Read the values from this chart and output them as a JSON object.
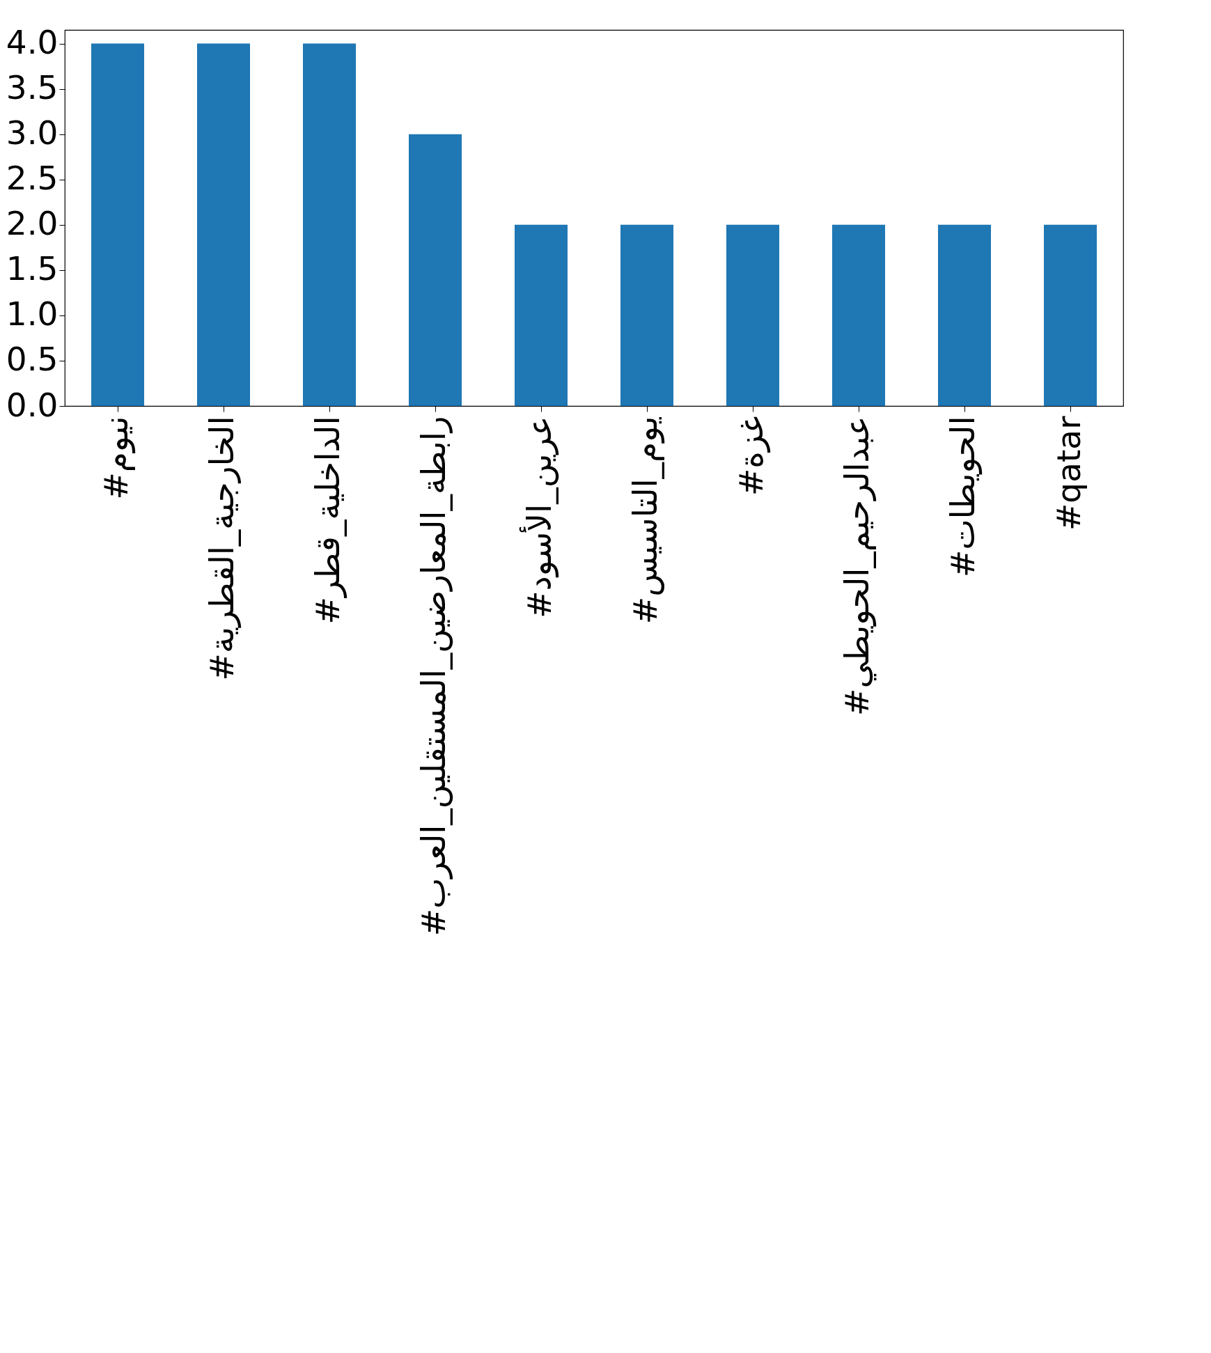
{
  "chart_data": {
    "type": "bar",
    "categories": [
      "#نيوم",
      "#الخارجية_القطرية",
      "#الداخلية_قطر",
      "#رابطة_المعارضين_المستقلين_العرب",
      "#عرين_الأسود",
      "#يوم_التاسيس",
      "#غزة",
      "#عبدالرحيم_الحويطي",
      "#الحويطات",
      "#qatar"
    ],
    "values": [
      4,
      4,
      4,
      3,
      2,
      2,
      2,
      2,
      2,
      2
    ],
    "color": "#1f77b4",
    "ylim": [
      0,
      4.15
    ],
    "yticks": [
      {
        "value": 0,
        "label": "0.0"
      },
      {
        "value": 0.5,
        "label": "0.5"
      },
      {
        "value": 1,
        "label": "1.0"
      },
      {
        "value": 1.5,
        "label": "1.5"
      },
      {
        "value": 2,
        "label": "2.0"
      },
      {
        "value": 2.5,
        "label": "2.5"
      },
      {
        "value": 3,
        "label": "3.0"
      },
      {
        "value": 3.5,
        "label": "3.5"
      },
      {
        "value": 4,
        "label": "4.0"
      }
    ],
    "grid": false
  }
}
